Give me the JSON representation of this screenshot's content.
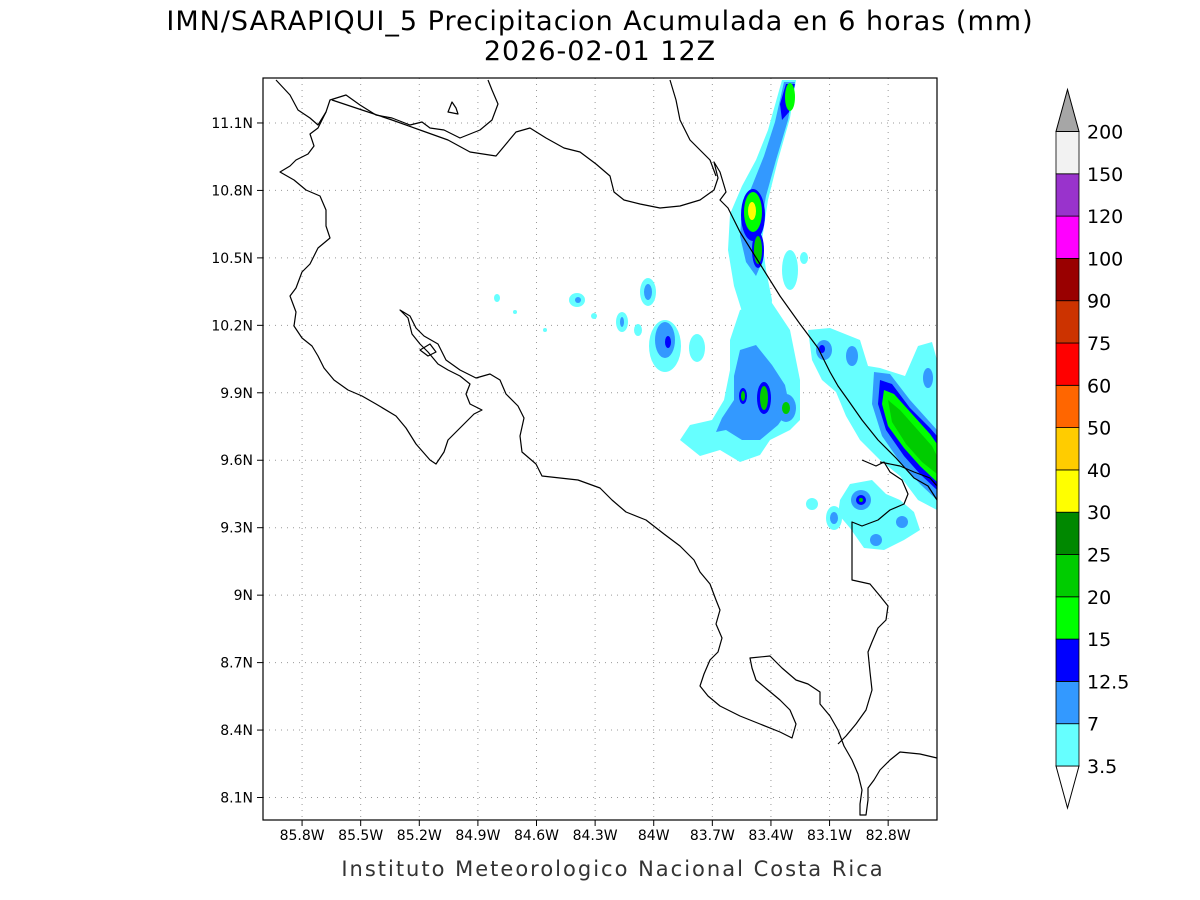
{
  "title": {
    "line1": "IMN/SARAPIQUI_5 Precipitacion Acumulada en 6 horas (mm)",
    "line2": "2026-02-01 12Z"
  },
  "credit": "Instituto Meteorologico Nacional Costa Rica",
  "map": {
    "lon_range": [
      -86.0,
      -82.55
    ],
    "lat_range": [
      8.0,
      11.3
    ],
    "grid": true,
    "lon_ticks": [
      {
        "value": -85.8,
        "label": "85.8W"
      },
      {
        "value": -85.5,
        "label": "85.5W"
      },
      {
        "value": -85.2,
        "label": "85.2W"
      },
      {
        "value": -84.9,
        "label": "84.9W"
      },
      {
        "value": -84.6,
        "label": "84.6W"
      },
      {
        "value": -84.3,
        "label": "84.3W"
      },
      {
        "value": -84.0,
        "label": "84W"
      },
      {
        "value": -83.7,
        "label": "83.7W"
      },
      {
        "value": -83.4,
        "label": "83.4W"
      },
      {
        "value": -83.1,
        "label": "83.1W"
      },
      {
        "value": -82.8,
        "label": "82.8W"
      }
    ],
    "lat_ticks": [
      {
        "value": 11.1,
        "label": "11.1N"
      },
      {
        "value": 10.8,
        "label": "10.8N"
      },
      {
        "value": 10.5,
        "label": "10.5N"
      },
      {
        "value": 10.2,
        "label": "10.2N"
      },
      {
        "value": 9.9,
        "label": "9.9N"
      },
      {
        "value": 9.6,
        "label": "9.6N"
      },
      {
        "value": 9.3,
        "label": "9.3N"
      },
      {
        "value": 9.0,
        "label": "9N"
      },
      {
        "value": 8.7,
        "label": "8.7N"
      },
      {
        "value": 8.4,
        "label": "8.4N"
      },
      {
        "value": 8.1,
        "label": "8.1N"
      }
    ]
  },
  "legend": {
    "levels": [
      {
        "label": "3.5",
        "color": "#66ffff"
      },
      {
        "label": "7",
        "color": "#3399ff"
      },
      {
        "label": "12.5",
        "color": "#0000ff"
      },
      {
        "label": "15",
        "color": "#00ff00"
      },
      {
        "label": "20",
        "color": "#00cc00"
      },
      {
        "label": "25",
        "color": "#008800"
      },
      {
        "label": "30",
        "color": "#ffff00"
      },
      {
        "label": "40",
        "color": "#ffcc00"
      },
      {
        "label": "50",
        "color": "#ff6600"
      },
      {
        "label": "60",
        "color": "#ff0000"
      },
      {
        "label": "75",
        "color": "#cc3300"
      },
      {
        "label": "90",
        "color": "#990000"
      },
      {
        "label": "100",
        "color": "#ff00ff"
      },
      {
        "label": "120",
        "color": "#9933cc"
      },
      {
        "label": "150",
        "color": "#f2f2f2"
      },
      {
        "label": "200",
        "color": "#a6a6a6"
      }
    ]
  }
}
